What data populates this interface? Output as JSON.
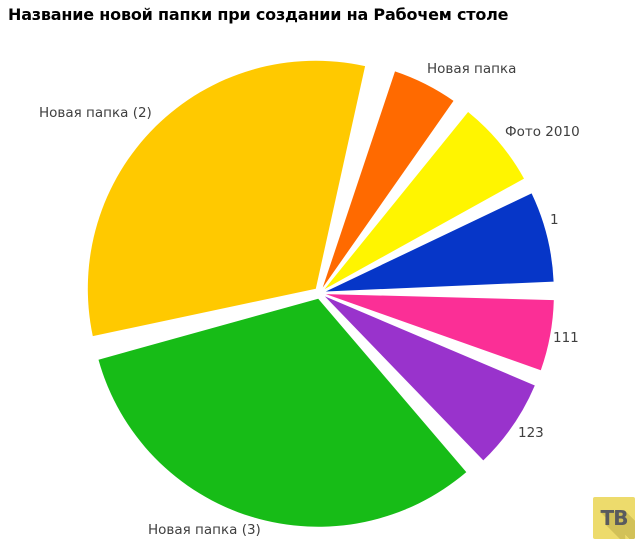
{
  "title": "Название новой папки при создании на Рабочем столе",
  "watermark": {
    "text": "ТВ",
    "bg_color": "#EDDB6C",
    "text_color": "#595A5E"
  },
  "chart_data": {
    "type": "pie",
    "title": "Название новой папки при создании на Рабочем столе",
    "label_position": "outside",
    "legend": "none",
    "background": "#FFFFFF",
    "slices": [
      {
        "label": "Новая папка",
        "percent": 5.0,
        "color": "#FF6A00",
        "start_deg": 18.5,
        "end_deg": 35
      },
      {
        "label": "Фото 2010",
        "percent": 6.6,
        "color": "#FFF500",
        "start_deg": 39,
        "end_deg": 61
      },
      {
        "label": "1",
        "percent": 6.9,
        "color": "#0636C8",
        "start_deg": 64.5,
        "end_deg": 87.5
      },
      {
        "label": "111",
        "percent": 5.4,
        "color": "#FB2F96",
        "start_deg": 91.5,
        "end_deg": 109.5
      },
      {
        "label": "123",
        "percent": 6.9,
        "color": "#9933CC",
        "start_deg": 113,
        "end_deg": 136
      },
      {
        "label": "Новая папка (3)",
        "percent": 34.6,
        "color": "#17BC17",
        "start_deg": 139.5,
        "end_deg": 254.5
      },
      {
        "label": "Новая папка (2)",
        "percent": 34.5,
        "color": "#FFC900",
        "start_deg": 258,
        "end_deg": 372.5
      }
    ]
  }
}
